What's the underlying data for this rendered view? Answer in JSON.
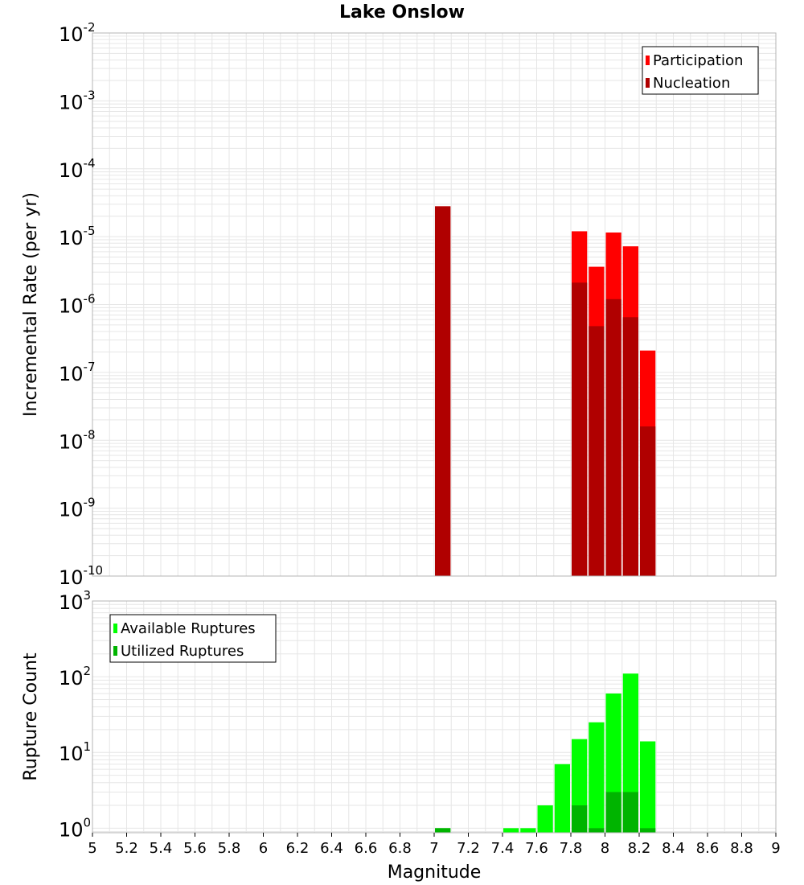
{
  "title": "Lake Onslow",
  "colors": {
    "participation": "#ff0000",
    "nucleation": "#b00000",
    "available": "#00ff00",
    "utilized": "#00b400",
    "grid": "#e6e6e6",
    "frame": "#b4b4b4"
  },
  "chart_data": [
    {
      "type": "bar",
      "panel": "top",
      "title": "Lake Onslow",
      "xlabel": "",
      "ylabel": "Incremental Rate (per yr)",
      "xlim": [
        5,
        9
      ],
      "ylim_log10": [
        -10,
        -2
      ],
      "yscale": "log",
      "ytick_exponents": [
        -10,
        -9,
        -8,
        -7,
        -6,
        -5,
        -4,
        -3,
        -2
      ],
      "ytick_base": "10",
      "legend_position": "top-right",
      "bin_width": 0.1,
      "series": [
        {
          "name": "Participation",
          "color": "#ff0000",
          "x": [
            7.05,
            7.85,
            7.95,
            8.05,
            8.15,
            8.25
          ],
          "values": [
            2.8e-05,
            1.2e-05,
            3.6e-06,
            1.15e-05,
            7.2e-06,
            2.1e-07
          ]
        },
        {
          "name": "Nucleation",
          "color": "#b00000",
          "x": [
            7.05,
            7.85,
            7.95,
            8.05,
            8.15,
            8.25
          ],
          "values": [
            2.8e-05,
            2.1e-06,
            4.8e-07,
            1.2e-06,
            6.5e-07,
            1.6e-08
          ]
        }
      ]
    },
    {
      "type": "bar",
      "panel": "bottom",
      "xlabel": "Magnitude",
      "ylabel": "Rupture Count",
      "xlim": [
        5,
        9
      ],
      "ylim_log10": [
        -0.06,
        3
      ],
      "yscale": "log",
      "ytick_exponents": [
        0,
        1,
        2,
        3
      ],
      "ytick_base": "10",
      "xticks": [
        "5",
        "5.2",
        "5.4",
        "5.6",
        "5.8",
        "6",
        "6.2",
        "6.4",
        "6.6",
        "6.8",
        "7",
        "7.2",
        "7.4",
        "7.6",
        "7.8",
        "8",
        "8.2",
        "8.4",
        "8.6",
        "8.8",
        "9"
      ],
      "legend_position": "top-left",
      "bin_width": 0.1,
      "series": [
        {
          "name": "Available Ruptures",
          "color": "#00ff00",
          "x": [
            7.05,
            7.45,
            7.55,
            7.65,
            7.75,
            7.85,
            7.95,
            8.05,
            8.15,
            8.25
          ],
          "values": [
            1,
            1,
            1,
            2,
            7,
            15,
            25,
            60,
            110,
            14
          ]
        },
        {
          "name": "Utilized Ruptures",
          "color": "#00b400",
          "x": [
            7.05,
            7.85,
            7.95,
            8.05,
            8.15,
            8.25
          ],
          "values": [
            1,
            2,
            1,
            3,
            3,
            1
          ]
        }
      ]
    }
  ]
}
